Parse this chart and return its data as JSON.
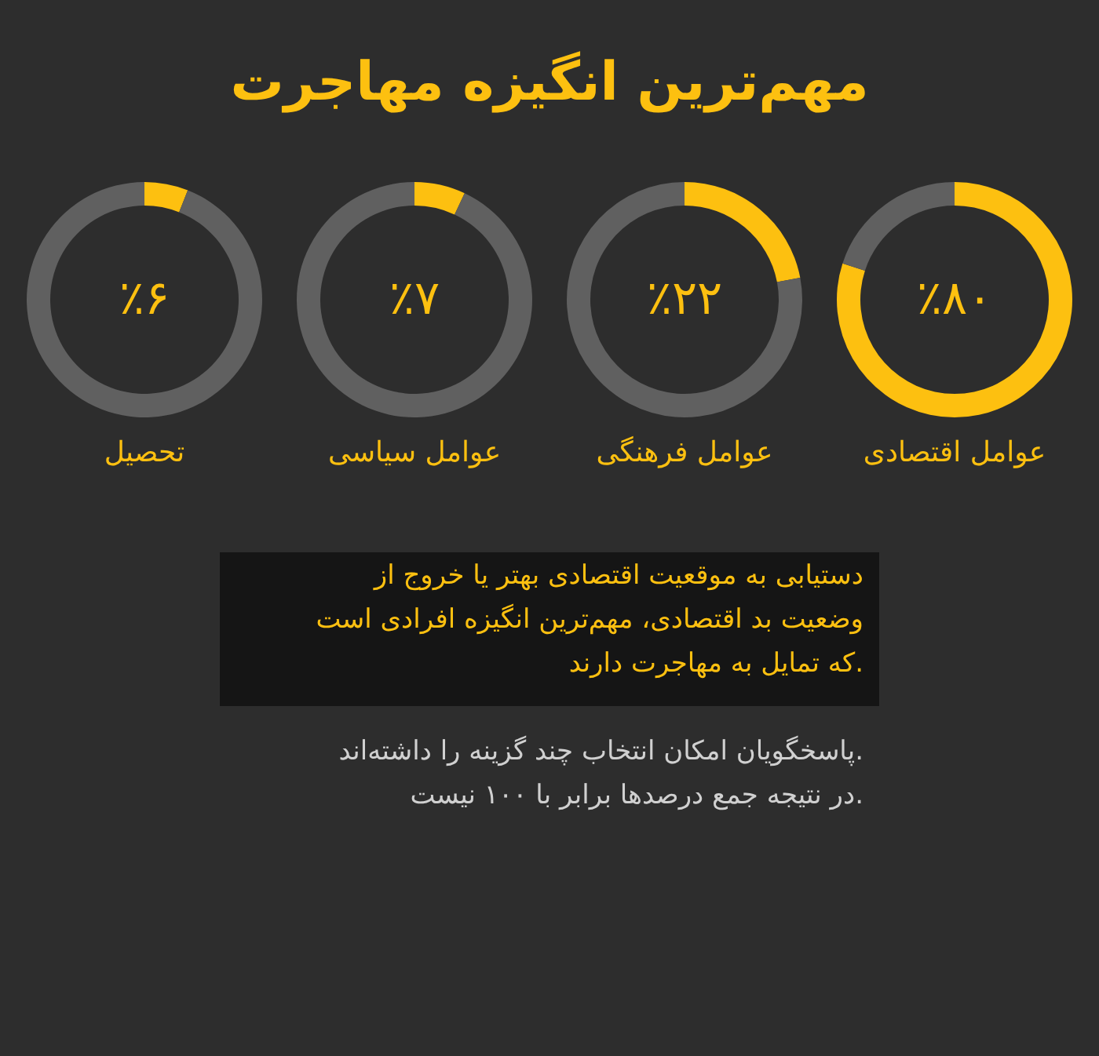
{
  "chart_data": [
    {
      "type": "other",
      "title": "مهم‌ترین انگیزه مهاجرت"
    },
    {
      "type": "donut",
      "title": "عوامل اقتصادی",
      "categories": [
        null,
        null
      ],
      "values": [
        80,
        20
      ],
      "colors": [
        "#fdc010",
        "#606060"
      ],
      "value_labels": [
        "٪۸۰",
        null
      ]
    },
    {
      "type": "donut",
      "title": "عوامل فرهنگی",
      "categories": [
        null,
        null
      ],
      "values": [
        22,
        78
      ],
      "colors": [
        "#fdc010",
        "#606060"
      ],
      "value_labels": [
        "٪۲۲",
        null
      ]
    },
    {
      "type": "donut",
      "title": "عوامل سیاسی",
      "categories": [
        null,
        null
      ],
      "values": [
        7,
        93
      ],
      "colors": [
        "#fdc010",
        "#606060"
      ],
      "value_labels": [
        "٪۷",
        null
      ]
    },
    {
      "type": "donut",
      "title": "تحصیل",
      "categories": [
        null,
        null
      ],
      "values": [
        6,
        94
      ],
      "colors": [
        "#fdc010",
        "#606060"
      ],
      "value_labels": [
        "٪۶",
        null
      ]
    },
    {
      "type": "other",
      "annotations": [
        "دستیابی به موقعیت اقتصادی بهتر یا خروج از وضعیت بد اقتصادی، مهم‌ترین انگیزه افرادی است که تمایل به مهاجرت دارند.",
        "پاسخگویان امکان انتخاب چند گزینه را داشته‌اند. در نتیجه جمع درصدها برابر با ۱۰۰ نیست."
      ]
    }
  ]
}
